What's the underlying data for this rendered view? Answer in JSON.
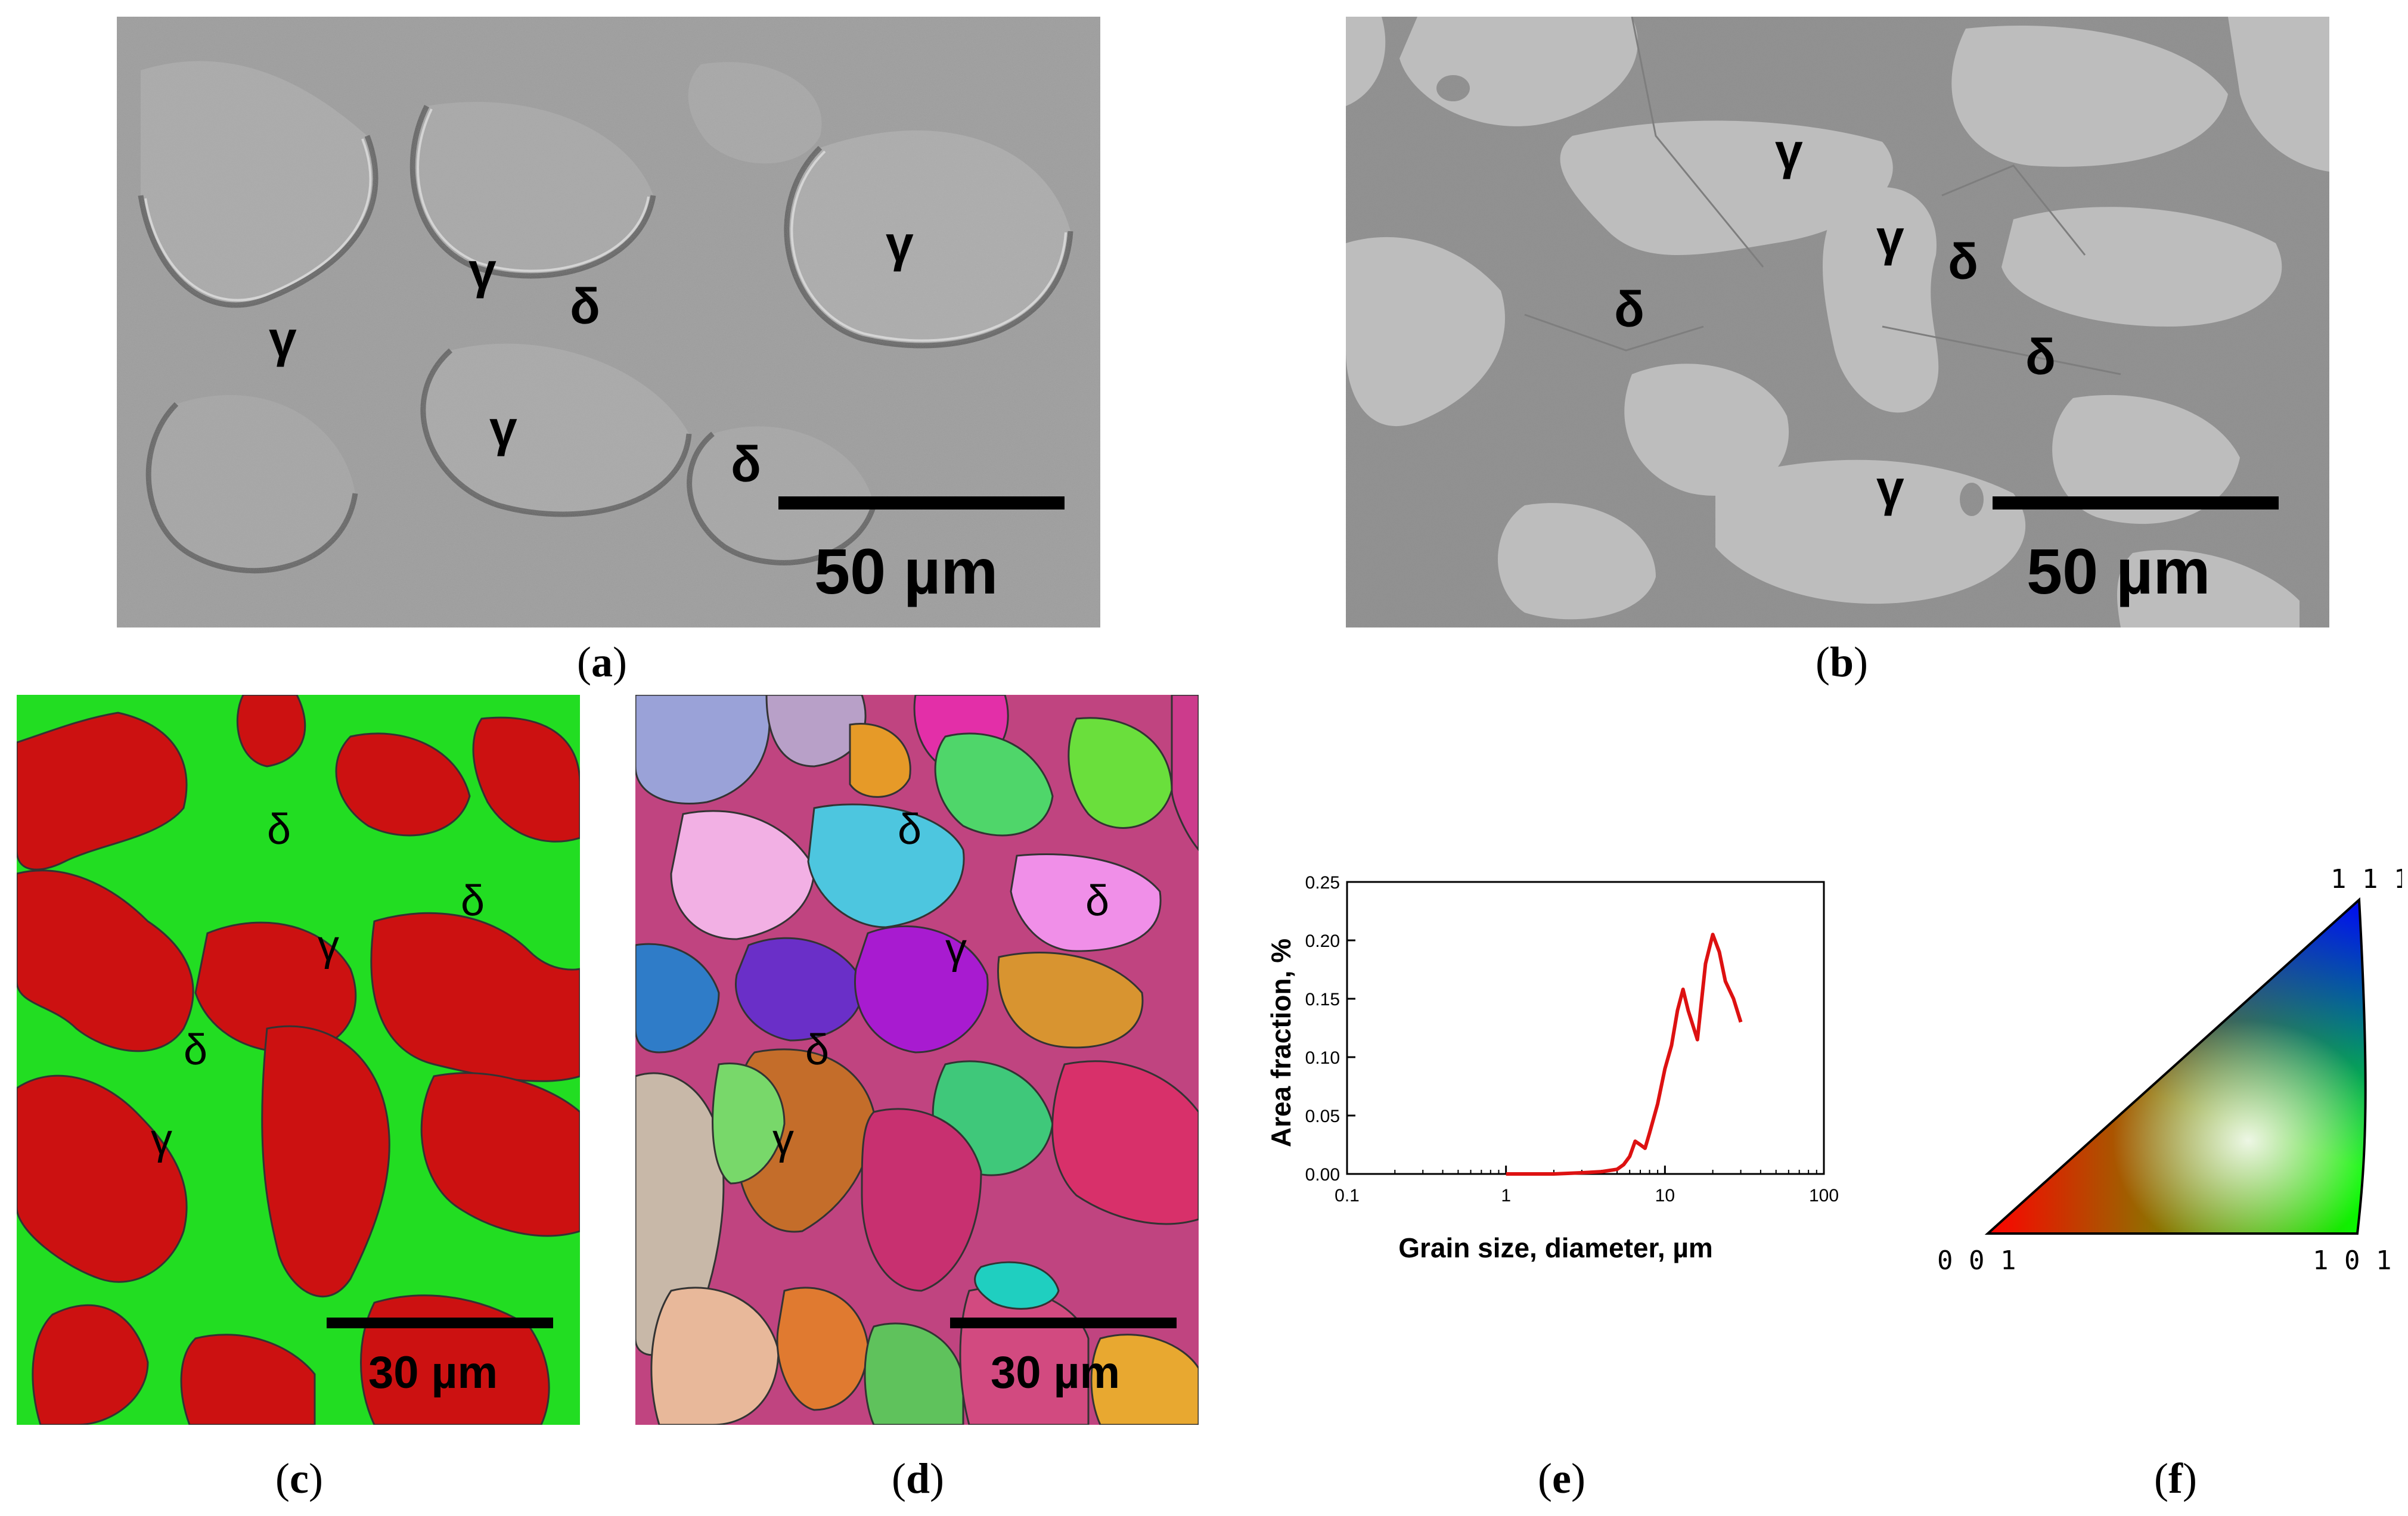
{
  "panels": {
    "a": {
      "caption": "a",
      "labels": [
        "γ",
        "γ",
        "δ",
        "γ",
        "γ",
        "δ"
      ],
      "scale_bar": "50 µm"
    },
    "b": {
      "caption": "b",
      "labels": [
        "γ",
        "γ",
        "δ",
        "δ",
        "δ",
        "γ"
      ],
      "scale_bar": "50 µm"
    },
    "c": {
      "caption": "c",
      "labels": [
        "δ",
        "γ",
        "δ",
        "δ",
        "γ"
      ],
      "scale_bar": "30 µm",
      "colors": {
        "gamma": "#cc1111",
        "delta": "#22dd22"
      }
    },
    "d": {
      "caption": "d",
      "labels": [
        "δ",
        "γ",
        "δ",
        "δ",
        "γ"
      ],
      "scale_bar": "30 µm"
    },
    "f": {
      "caption": "f",
      "corner_labels": [
        "1 1 1",
        "0 0 1",
        "1 0 1"
      ]
    }
  },
  "chart_data": {
    "type": "line",
    "caption": "e",
    "xlabel": "Grain size, diameter, µm",
    "ylabel": "Area fraction, %",
    "xscale": "log",
    "xlim": [
      0.1,
      100
    ],
    "ylim": [
      0,
      0.25
    ],
    "x_ticks": [
      "0.1",
      "1",
      "10",
      "100"
    ],
    "y_ticks": [
      "0.00",
      "0.05",
      "0.10",
      "0.15",
      "0.20",
      "0.25"
    ],
    "series": [
      {
        "color": "#dd1111",
        "x": [
          1,
          2,
          3,
          4,
          5,
          5.5,
          6,
          6.5,
          7,
          7.5,
          8,
          9,
          10,
          11,
          12,
          13,
          14,
          16,
          18,
          20,
          22,
          24,
          27,
          30
        ],
        "y": [
          0.0,
          0.0,
          0.001,
          0.002,
          0.004,
          0.008,
          0.015,
          0.028,
          0.025,
          0.022,
          0.035,
          0.06,
          0.09,
          0.11,
          0.14,
          0.158,
          0.14,
          0.115,
          0.18,
          0.205,
          0.19,
          0.165,
          0.15,
          0.13
        ]
      }
    ]
  }
}
